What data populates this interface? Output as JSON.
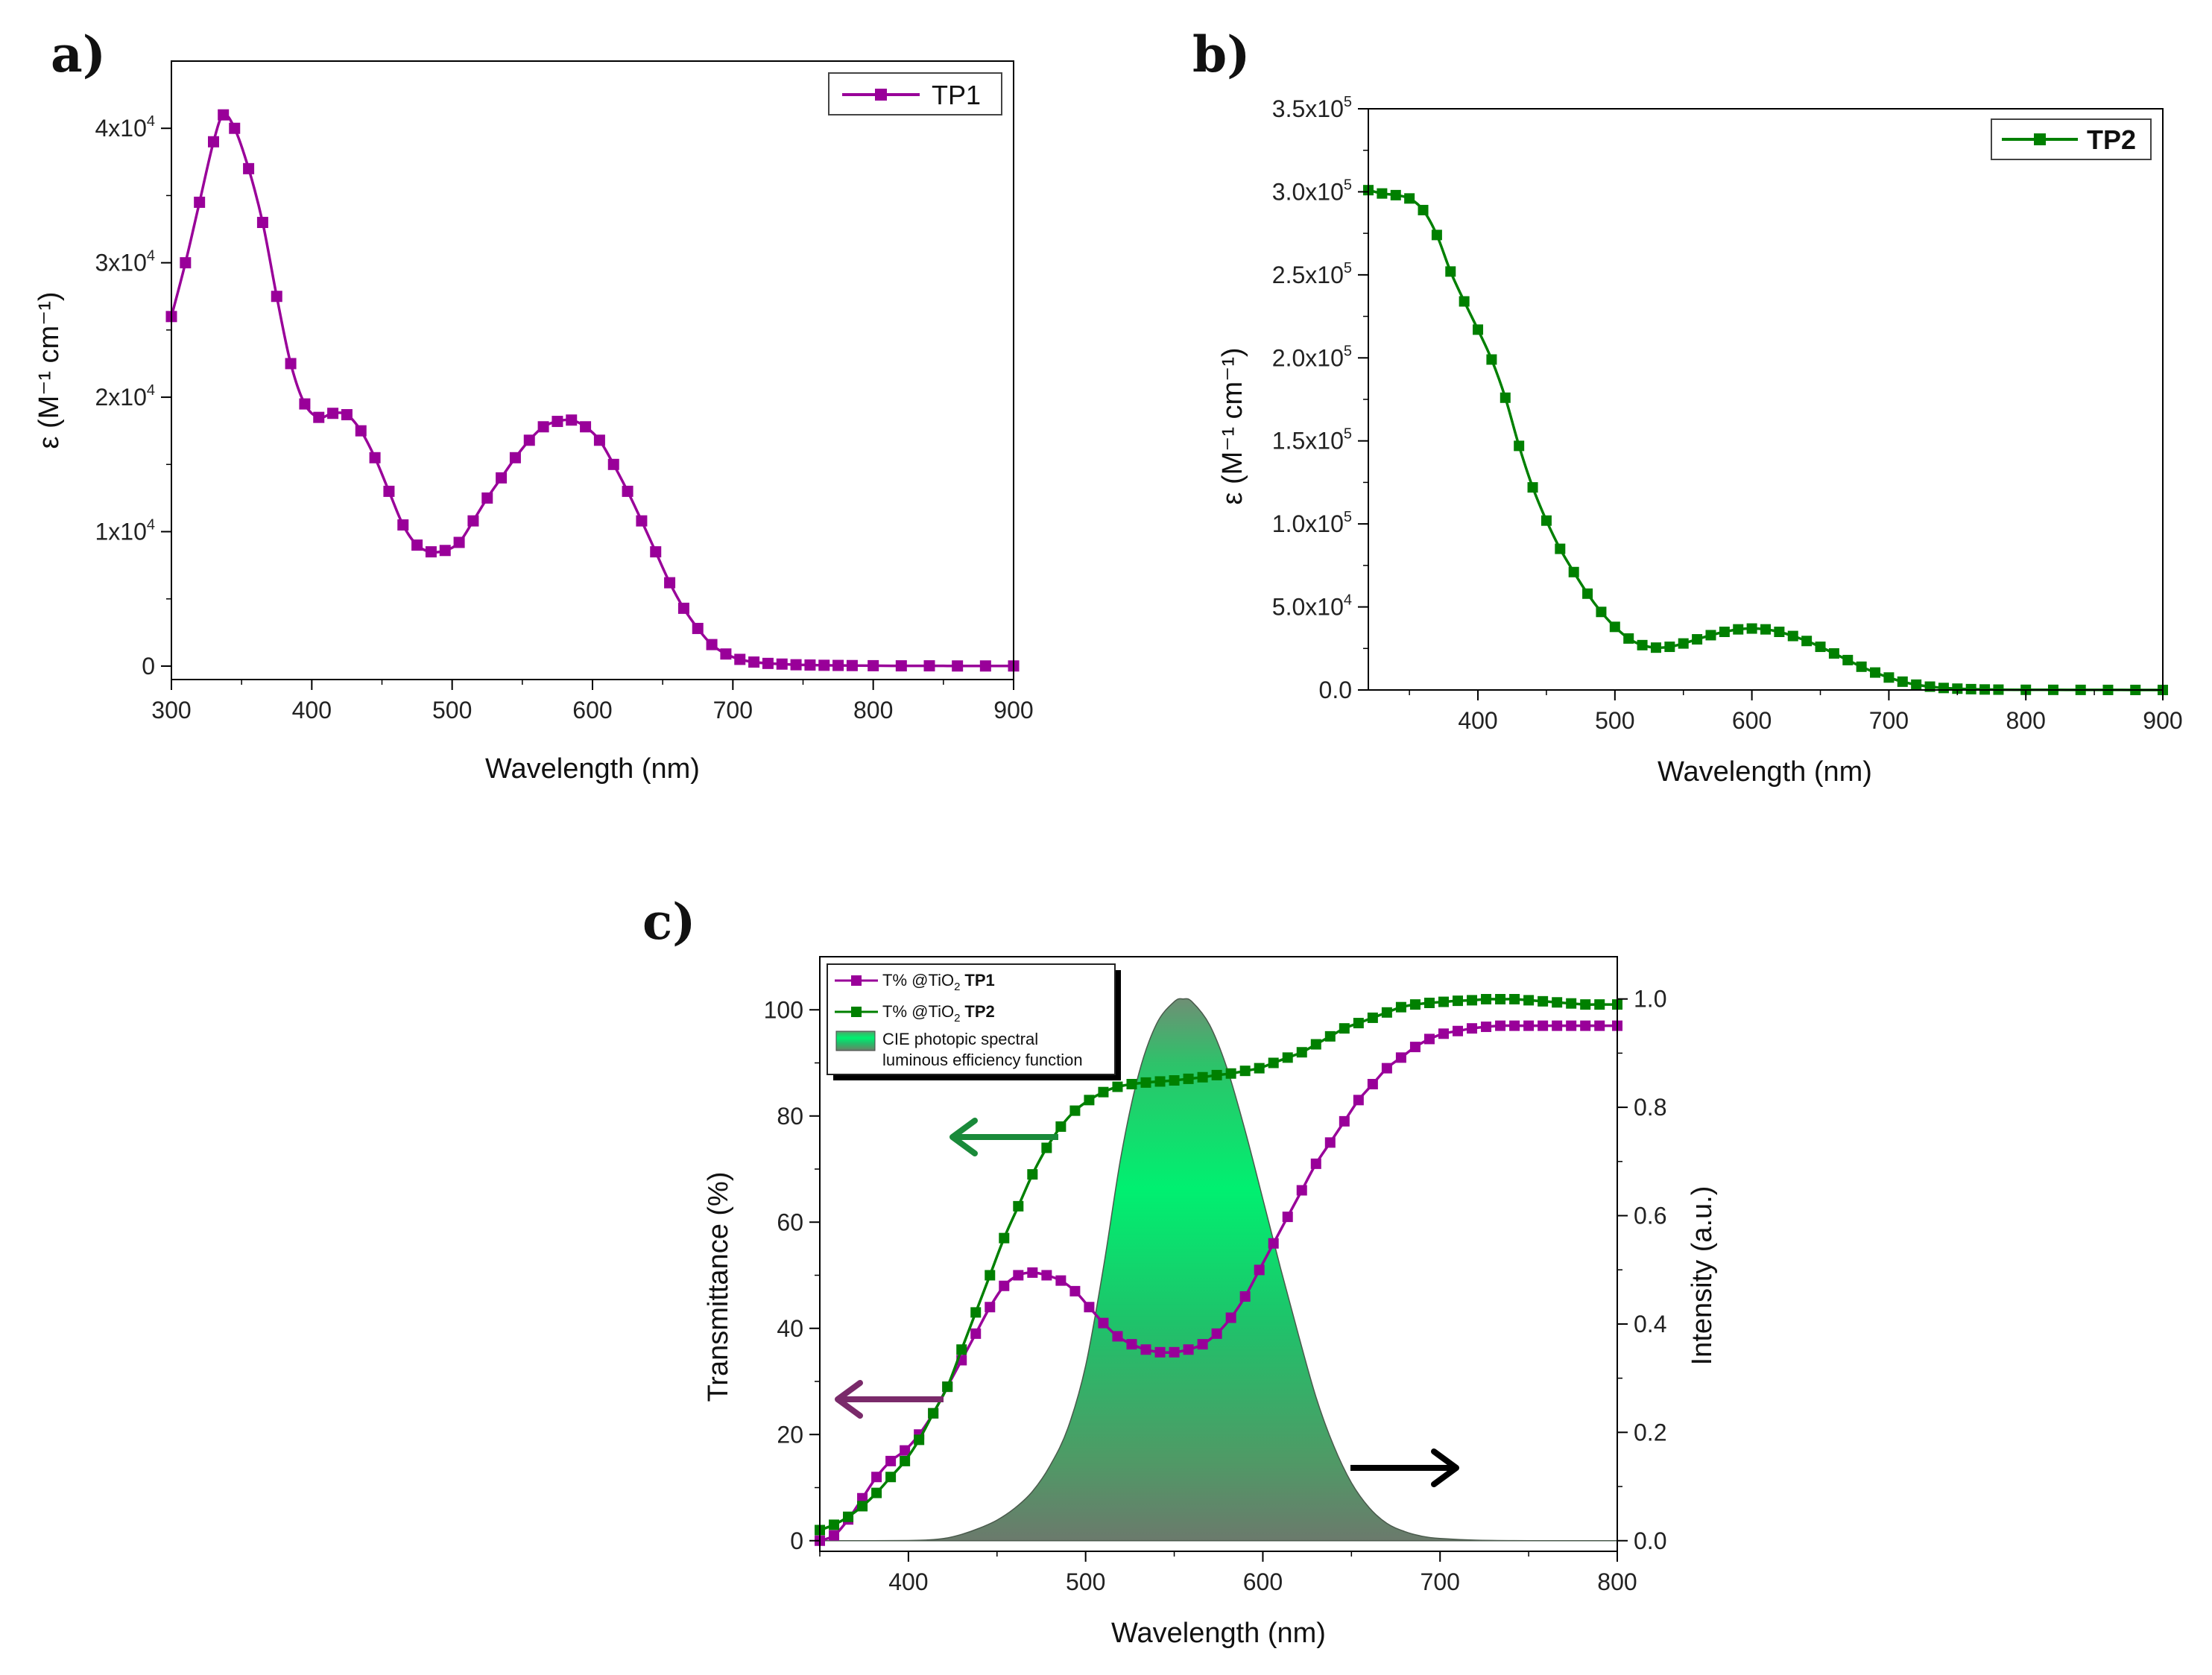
{
  "panels": {
    "a": {
      "letter": "a)"
    },
    "b": {
      "letter": "b)"
    },
    "c": {
      "letter": "c)"
    }
  },
  "chart_data": [
    {
      "panel": "a",
      "type": "line",
      "xlabel": "Wavelength (nm)",
      "ylabel": "ε (M⁻¹ cm⁻¹)",
      "xlim": [
        300,
        900
      ],
      "ylim": [
        -1000,
        45000
      ],
      "xticks": [
        300,
        400,
        500,
        600,
        700,
        800,
        900
      ],
      "yticks": [
        {
          "value": 0,
          "label": "0",
          "sup": ""
        },
        {
          "value": 10000,
          "label": "1x10",
          "sup": "4"
        },
        {
          "value": 20000,
          "label": "2x10",
          "sup": "4"
        },
        {
          "value": 30000,
          "label": "3x10",
          "sup": "4"
        },
        {
          "value": 40000,
          "label": "4x10",
          "sup": "4"
        }
      ],
      "legend": "top-right",
      "series": [
        {
          "name": "TP1",
          "color": "#990099",
          "marker": "square",
          "x": [
            300,
            310,
            320,
            330,
            337,
            345,
            355,
            365,
            375,
            385,
            395,
            405,
            415,
            425,
            435,
            445,
            455,
            465,
            475,
            485,
            495,
            505,
            515,
            525,
            535,
            545,
            555,
            565,
            575,
            585,
            595,
            605,
            615,
            625,
            635,
            645,
            655,
            665,
            675,
            685,
            695,
            705,
            715,
            725,
            735,
            745,
            755,
            765,
            775,
            785,
            800,
            820,
            840,
            860,
            880,
            900
          ],
          "y": [
            26000,
            30000,
            34500,
            39000,
            41000,
            40000,
            37000,
            33000,
            27500,
            22500,
            19500,
            18500,
            18800,
            18700,
            17500,
            15500,
            13000,
            10500,
            9000,
            8500,
            8600,
            9200,
            10800,
            12500,
            14000,
            15500,
            16800,
            17800,
            18200,
            18300,
            17800,
            16800,
            15000,
            13000,
            10800,
            8500,
            6200,
            4300,
            2800,
            1600,
            900,
            500,
            300,
            200,
            150,
            100,
            80,
            60,
            50,
            40,
            30,
            20,
            20,
            10,
            10,
            10
          ]
        }
      ]
    },
    {
      "panel": "b",
      "type": "line",
      "xlabel": "Wavelength (nm)",
      "ylabel": "ε (M⁻¹ cm⁻¹)",
      "xlim": [
        320,
        900
      ],
      "ylim": [
        0,
        350000
      ],
      "xticks": [
        400,
        500,
        600,
        700,
        800,
        900
      ],
      "yticks": [
        {
          "value": 0,
          "label": "0.0",
          "sup": ""
        },
        {
          "value": 50000,
          "label": "5.0x10",
          "sup": "4"
        },
        {
          "value": 100000,
          "label": "1.0x10",
          "sup": "5"
        },
        {
          "value": 150000,
          "label": "1.5x10",
          "sup": "5"
        },
        {
          "value": 200000,
          "label": "2.0x10",
          "sup": "5"
        },
        {
          "value": 250000,
          "label": "2.5x10",
          "sup": "5"
        },
        {
          "value": 300000,
          "label": "3.0x10",
          "sup": "5"
        },
        {
          "value": 350000,
          "label": "3.5x10",
          "sup": "5"
        }
      ],
      "legend": "top-right",
      "series": [
        {
          "name": "TP2",
          "color": "#008000",
          "marker": "square",
          "x": [
            320,
            330,
            340,
            350,
            360,
            370,
            380,
            390,
            400,
            410,
            420,
            430,
            440,
            450,
            460,
            470,
            480,
            490,
            500,
            510,
            520,
            530,
            540,
            550,
            560,
            570,
            580,
            590,
            600,
            610,
            620,
            630,
            640,
            650,
            660,
            670,
            680,
            690,
            700,
            710,
            720,
            730,
            740,
            750,
            760,
            770,
            780,
            800,
            820,
            840,
            860,
            880,
            900
          ],
          "y": [
            301000,
            299000,
            298000,
            296000,
            289000,
            274000,
            252000,
            234000,
            217000,
            199000,
            176000,
            147000,
            122000,
            102000,
            85000,
            71000,
            58000,
            47000,
            38000,
            31000,
            27000,
            25500,
            26000,
            28000,
            30500,
            33000,
            35000,
            36500,
            37000,
            36500,
            35000,
            32500,
            29500,
            26000,
            22000,
            18000,
            14000,
            10500,
            7500,
            5000,
            3200,
            2000,
            1200,
            800,
            500,
            300,
            200,
            100,
            80,
            50,
            30,
            20,
            10
          ]
        }
      ]
    },
    {
      "panel": "c",
      "type": "line",
      "xlabel": "Wavelength (nm)",
      "ylabel": "Transmittance (%)",
      "y2label": "Intensity (a.u.)",
      "xlim": [
        350,
        800
      ],
      "ylim": [
        -2,
        110
      ],
      "y2lim": [
        -0.0196,
        1.078
      ],
      "xticks": [
        400,
        500,
        600,
        700,
        800
      ],
      "yticks": [
        0,
        20,
        40,
        60,
        80,
        100
      ],
      "y2ticks": [
        "0.0",
        "0.2",
        "0.4",
        "0.6",
        "0.8",
        "1.0"
      ],
      "legend": "top-left",
      "legend_entries": [
        {
          "prefix": "T% @TiO",
          "sub": "2",
          "bold": "TP1"
        },
        {
          "prefix": "T% @TiO",
          "sub": "2",
          "bold": "TP2"
        },
        {
          "line1": "CIE photopic spectral",
          "line2": "luminous efficiency function"
        }
      ],
      "series": [
        {
          "name": "T% @TiO2 TP1",
          "color": "#990099",
          "axis": "left",
          "x": [
            350,
            358,
            366,
            374,
            382,
            390,
            398,
            406,
            414,
            422,
            430,
            438,
            446,
            454,
            462,
            470,
            478,
            486,
            494,
            502,
            510,
            518,
            526,
            534,
            542,
            550,
            558,
            566,
            574,
            582,
            590,
            598,
            606,
            614,
            622,
            630,
            638,
            646,
            654,
            662,
            670,
            678,
            686,
            694,
            702,
            710,
            718,
            726,
            734,
            742,
            750,
            758,
            766,
            774,
            782,
            790,
            800
          ],
          "y": [
            0,
            1,
            4,
            8,
            12,
            15,
            17,
            20,
            24,
            29,
            34,
            39,
            44,
            48,
            50,
            50.5,
            50,
            49,
            47,
            44,
            41,
            38.5,
            37,
            36,
            35.5,
            35.5,
            36,
            37,
            39,
            42,
            46,
            51,
            56,
            61,
            66,
            71,
            75,
            79,
            83,
            86,
            89,
            91,
            93,
            94.5,
            95.5,
            96,
            96.5,
            96.8,
            97,
            97,
            97,
            97,
            97,
            97,
            97,
            97,
            97
          ]
        },
        {
          "name": "T% @TiO2 TP2",
          "color": "#008000",
          "axis": "left",
          "x": [
            350,
            358,
            366,
            374,
            382,
            390,
            398,
            406,
            414,
            422,
            430,
            438,
            446,
            454,
            462,
            470,
            478,
            486,
            494,
            502,
            510,
            518,
            526,
            534,
            542,
            550,
            558,
            566,
            574,
            582,
            590,
            598,
            606,
            614,
            622,
            630,
            638,
            646,
            654,
            662,
            670,
            678,
            686,
            694,
            702,
            710,
            718,
            726,
            734,
            742,
            750,
            758,
            766,
            774,
            782,
            790,
            800
          ],
          "y": [
            2,
            3,
            4.5,
            6.5,
            9,
            12,
            15,
            19,
            24,
            29,
            36,
            43,
            50,
            57,
            63,
            69,
            74,
            78,
            81,
            83,
            84.5,
            85.5,
            86,
            86.3,
            86.5,
            86.7,
            87,
            87.3,
            87.7,
            88,
            88.5,
            89,
            90,
            91,
            92,
            93.5,
            95,
            96.5,
            97.5,
            98.5,
            99.5,
            100.5,
            101,
            101.3,
            101.5,
            101.7,
            101.8,
            102,
            102,
            102,
            101.8,
            101.6,
            101.4,
            101.2,
            101,
            101,
            101
          ]
        },
        {
          "name": "CIE photopic spectral luminous efficiency function",
          "type": "area",
          "color": "#00ee66",
          "axis": "right",
          "x": [
            350,
            380,
            400,
            410,
            420,
            430,
            440,
            450,
            460,
            470,
            480,
            490,
            500,
            510,
            520,
            530,
            540,
            550,
            555,
            560,
            570,
            580,
            590,
            600,
            610,
            620,
            630,
            640,
            650,
            660,
            670,
            680,
            690,
            700,
            720,
            750,
            800
          ],
          "y": [
            0,
            0,
            0.0004,
            0.0012,
            0.004,
            0.0116,
            0.023,
            0.038,
            0.06,
            0.091,
            0.139,
            0.208,
            0.323,
            0.503,
            0.71,
            0.862,
            0.954,
            0.995,
            1.0,
            0.995,
            0.952,
            0.87,
            0.757,
            0.631,
            0.503,
            0.381,
            0.265,
            0.175,
            0.107,
            0.061,
            0.032,
            0.017,
            0.0082,
            0.0041,
            0.001,
            0.0001,
            0
          ]
        }
      ],
      "annotations": [
        {
          "name": "green-arrow",
          "direction": "left",
          "color": "#1a8a3a"
        },
        {
          "name": "purple-arrow",
          "direction": "left",
          "color": "#7a2a6a"
        },
        {
          "name": "black-arrow",
          "direction": "right",
          "color": "#000000"
        }
      ]
    }
  ]
}
